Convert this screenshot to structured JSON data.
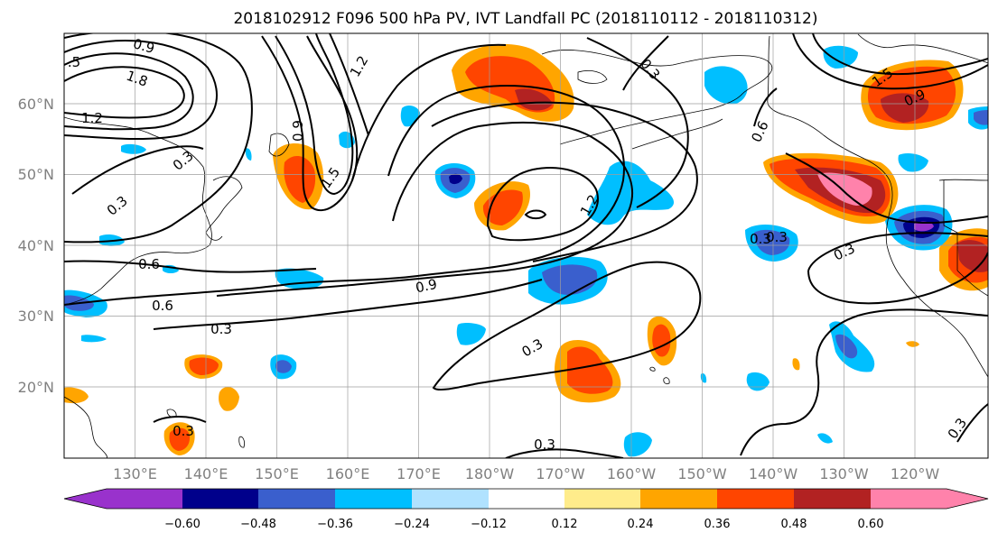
{
  "title": "2018102912 F096 500 hPa PV, IVT Landfall PC (2018110112 - 2018110312)",
  "map": {
    "lon_ticks": [
      "130°E",
      "140°E",
      "150°E",
      "160°E",
      "170°E",
      "180°W",
      "170°W",
      "160°W",
      "150°W",
      "140°W",
      "130°W",
      "120°W"
    ],
    "lat_ticks": [
      "60°N",
      "50°N",
      "40°N",
      "30°N",
      "20°N"
    ]
  },
  "colorbar": {
    "tick_labels": [
      "−0.60",
      "−0.48",
      "−0.36",
      "−0.24",
      "−0.12",
      "0.12",
      "0.24",
      "0.36",
      "0.48",
      "0.60"
    ],
    "colors": [
      "#9932cc",
      "#00008b",
      "#3a5fcd",
      "#00bfff",
      "#b0e2ff",
      "#ffffff",
      "#ffec8b",
      "#ffa500",
      "#ff4500",
      "#b22222",
      "#ff82ab"
    ]
  },
  "contour_labels": [
    ".5",
    "1.8",
    "1.2",
    "0.9",
    "1.2",
    "0.9",
    "1.5",
    "0.3",
    "0.3",
    "0.6",
    "0.6",
    "0.3",
    "0.9",
    "1.2",
    "0.3",
    "0.6",
    "0.3",
    "1.5",
    "0.9",
    "0.3",
    "0.3",
    "0.3",
    "0.3",
    "0.3",
    "0.3"
  ]
}
